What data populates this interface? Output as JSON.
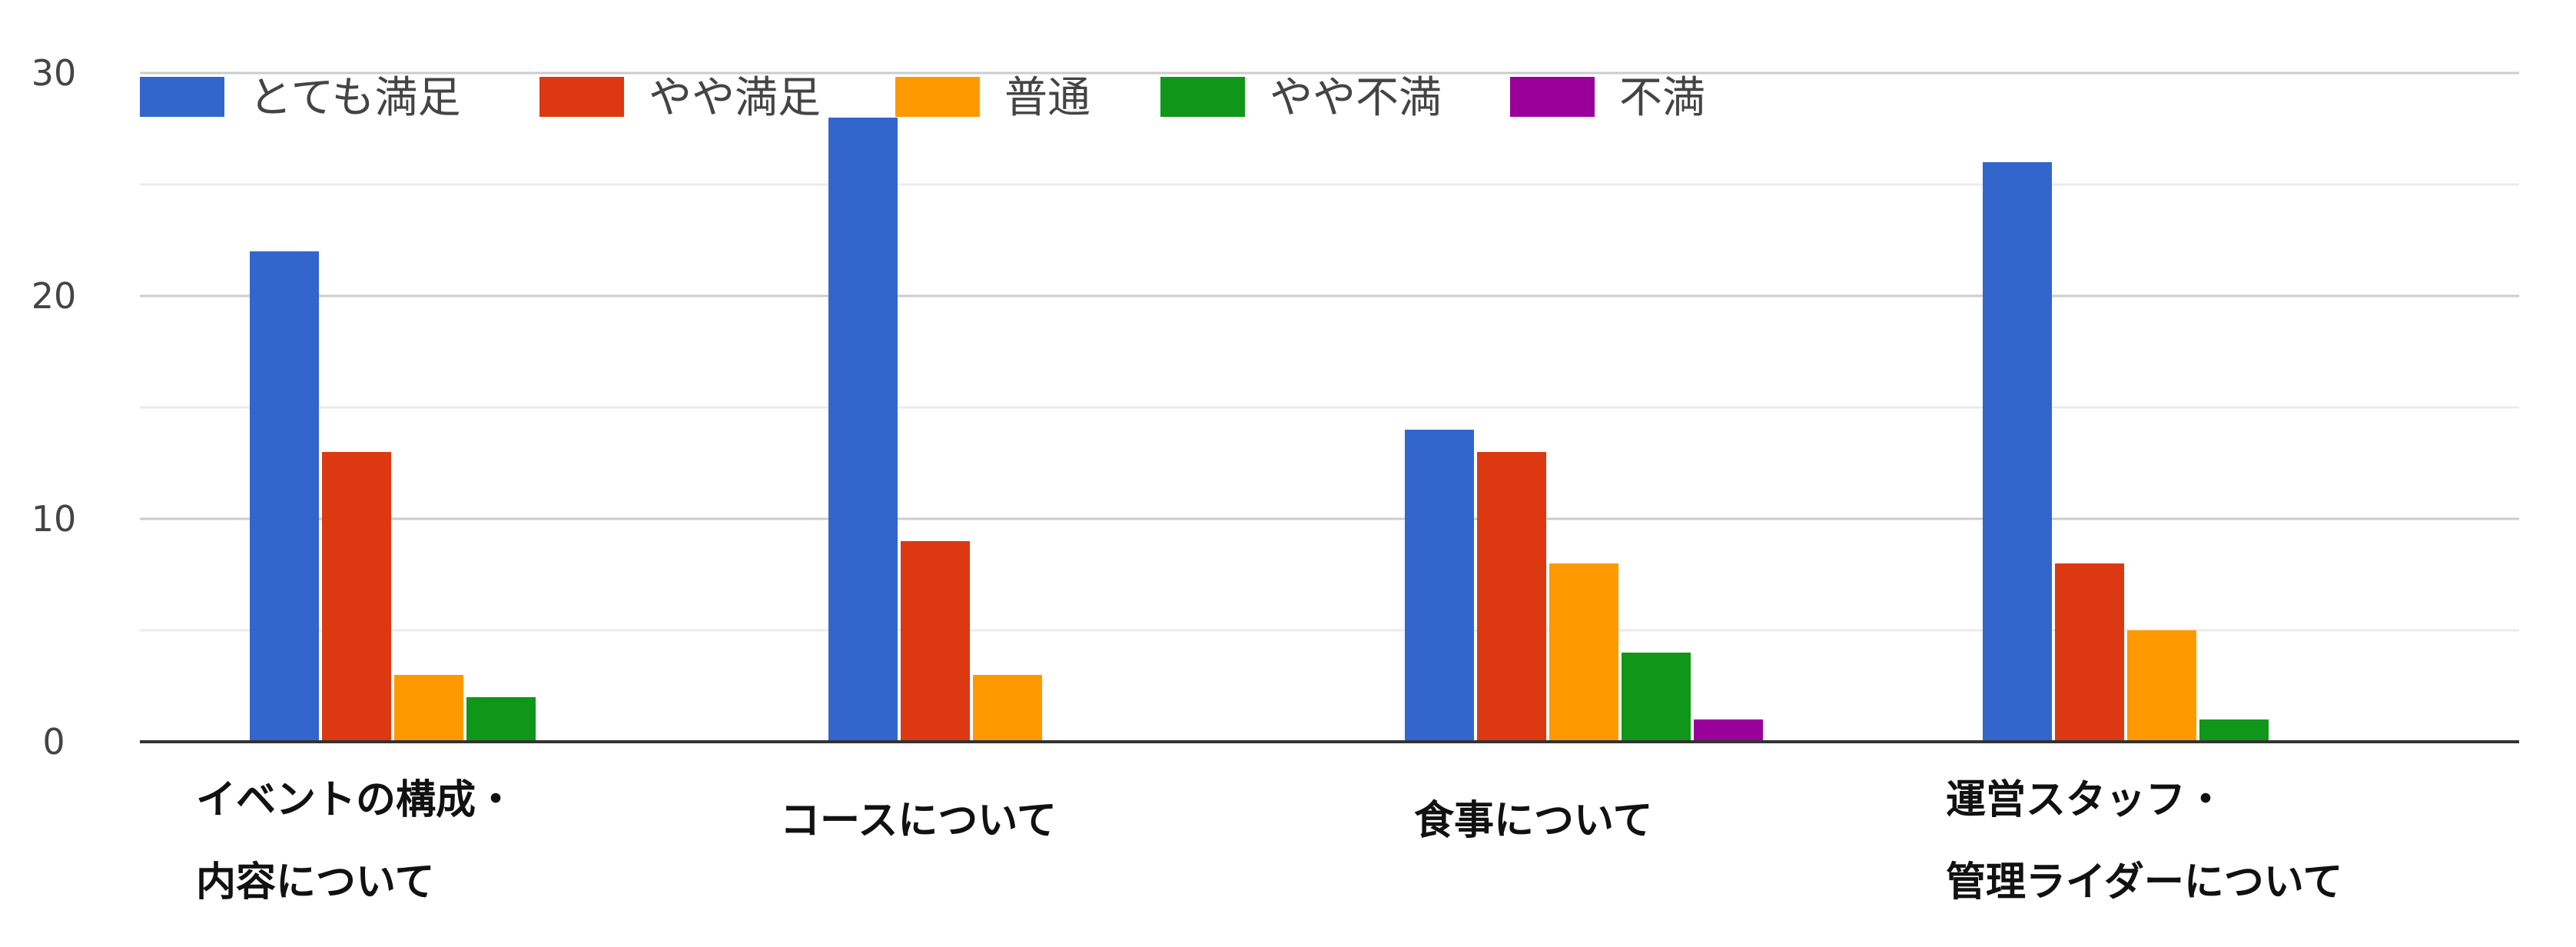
{
  "chart_data": {
    "type": "bar",
    "title": "",
    "xlabel": "",
    "ylabel": "",
    "ylim": [
      0,
      30
    ],
    "yticks": [
      0,
      10,
      20,
      30
    ],
    "grid": true,
    "legend_position": "top",
    "categories": [
      [
        "イベントの構成・",
        "内容について"
      ],
      [
        "コースについて"
      ],
      [
        "食事について"
      ],
      [
        "運営スタッフ・",
        "管理ライダーについて"
      ]
    ],
    "series": [
      {
        "name": "とても満足",
        "color": "#3366cc",
        "values": [
          22,
          28,
          14,
          26
        ]
      },
      {
        "name": "やや満足",
        "color": "#dc3912",
        "values": [
          13,
          9,
          13,
          8
        ]
      },
      {
        "name": "普通",
        "color": "#ff9900",
        "values": [
          3,
          3,
          8,
          5
        ]
      },
      {
        "name": "やや不満",
        "color": "#109618",
        "values": [
          2,
          0,
          4,
          1
        ]
      },
      {
        "name": "不満",
        "color": "#990099",
        "values": [
          0,
          0,
          1,
          0
        ]
      }
    ]
  }
}
